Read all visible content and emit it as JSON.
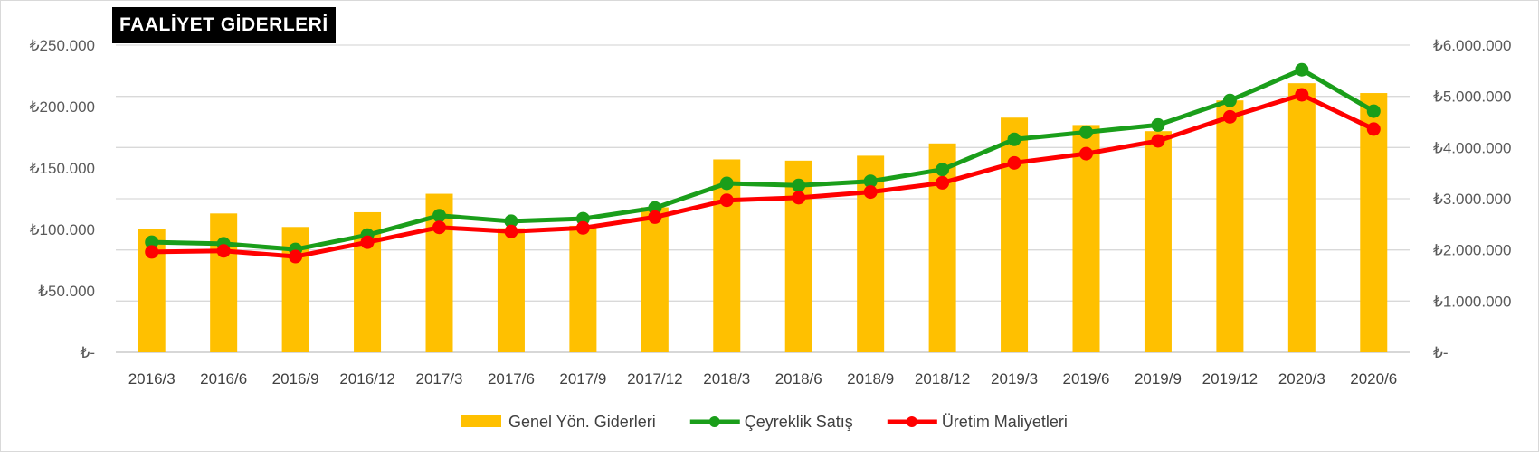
{
  "chart_data": {
    "type": "bar",
    "title": "FAALİYET GİDERLERİ",
    "categories": [
      "2016/3",
      "2016/6",
      "2016/9",
      "2016/12",
      "2017/3",
      "2017/6",
      "2017/9",
      "2017/12",
      "2018/3",
      "2018/6",
      "2018/9",
      "2018/12",
      "2019/3",
      "2019/6",
      "2019/9",
      "2019/12",
      "2020/3",
      "2020/6"
    ],
    "left_axis": {
      "ylim": [
        0,
        250000
      ],
      "ticks": [
        0,
        50000,
        100000,
        150000,
        200000,
        250000
      ],
      "tick_labels": [
        "₺-",
        "₺50.000",
        "₺100.000",
        "₺150.000",
        "₺200.000",
        "₺250.000"
      ]
    },
    "right_axis": {
      "ylim": [
        0,
        6000000
      ],
      "ticks": [
        0,
        1000000,
        2000000,
        3000000,
        4000000,
        5000000,
        6000000
      ],
      "tick_labels": [
        "₺-",
        "₺1.000.000",
        "₺2.000.000",
        "₺3.000.000",
        "₺4.000.000",
        "₺5.000.000",
        "₺6.000.000"
      ]
    },
    "series": [
      {
        "name": "Genel Yön. Giderleri",
        "type": "bar",
        "axis": "left",
        "color": "#FFC000",
        "values": [
          100000,
          113000,
          102000,
          114000,
          129000,
          101000,
          103000,
          118000,
          157000,
          156000,
          160000,
          170000,
          191000,
          185000,
          180000,
          205000,
          219000,
          211000
        ]
      },
      {
        "name": "Çeyreklik Satış",
        "type": "line",
        "axis": "right",
        "color": "#1A9E1A",
        "values": [
          2150000,
          2120000,
          2010000,
          2290000,
          2670000,
          2560000,
          2610000,
          2820000,
          3300000,
          3260000,
          3340000,
          3570000,
          4160000,
          4300000,
          4440000,
          4920000,
          5520000,
          4710000
        ]
      },
      {
        "name": "Üretim Maliyetleri",
        "type": "line",
        "axis": "right",
        "color": "#FF0000",
        "values": [
          1960000,
          1980000,
          1870000,
          2150000,
          2440000,
          2360000,
          2430000,
          2640000,
          2970000,
          3020000,
          3130000,
          3310000,
          3700000,
          3880000,
          4130000,
          4600000,
          5030000,
          4360000
        ]
      }
    ],
    "legend_position": "bottom",
    "grid": true
  }
}
